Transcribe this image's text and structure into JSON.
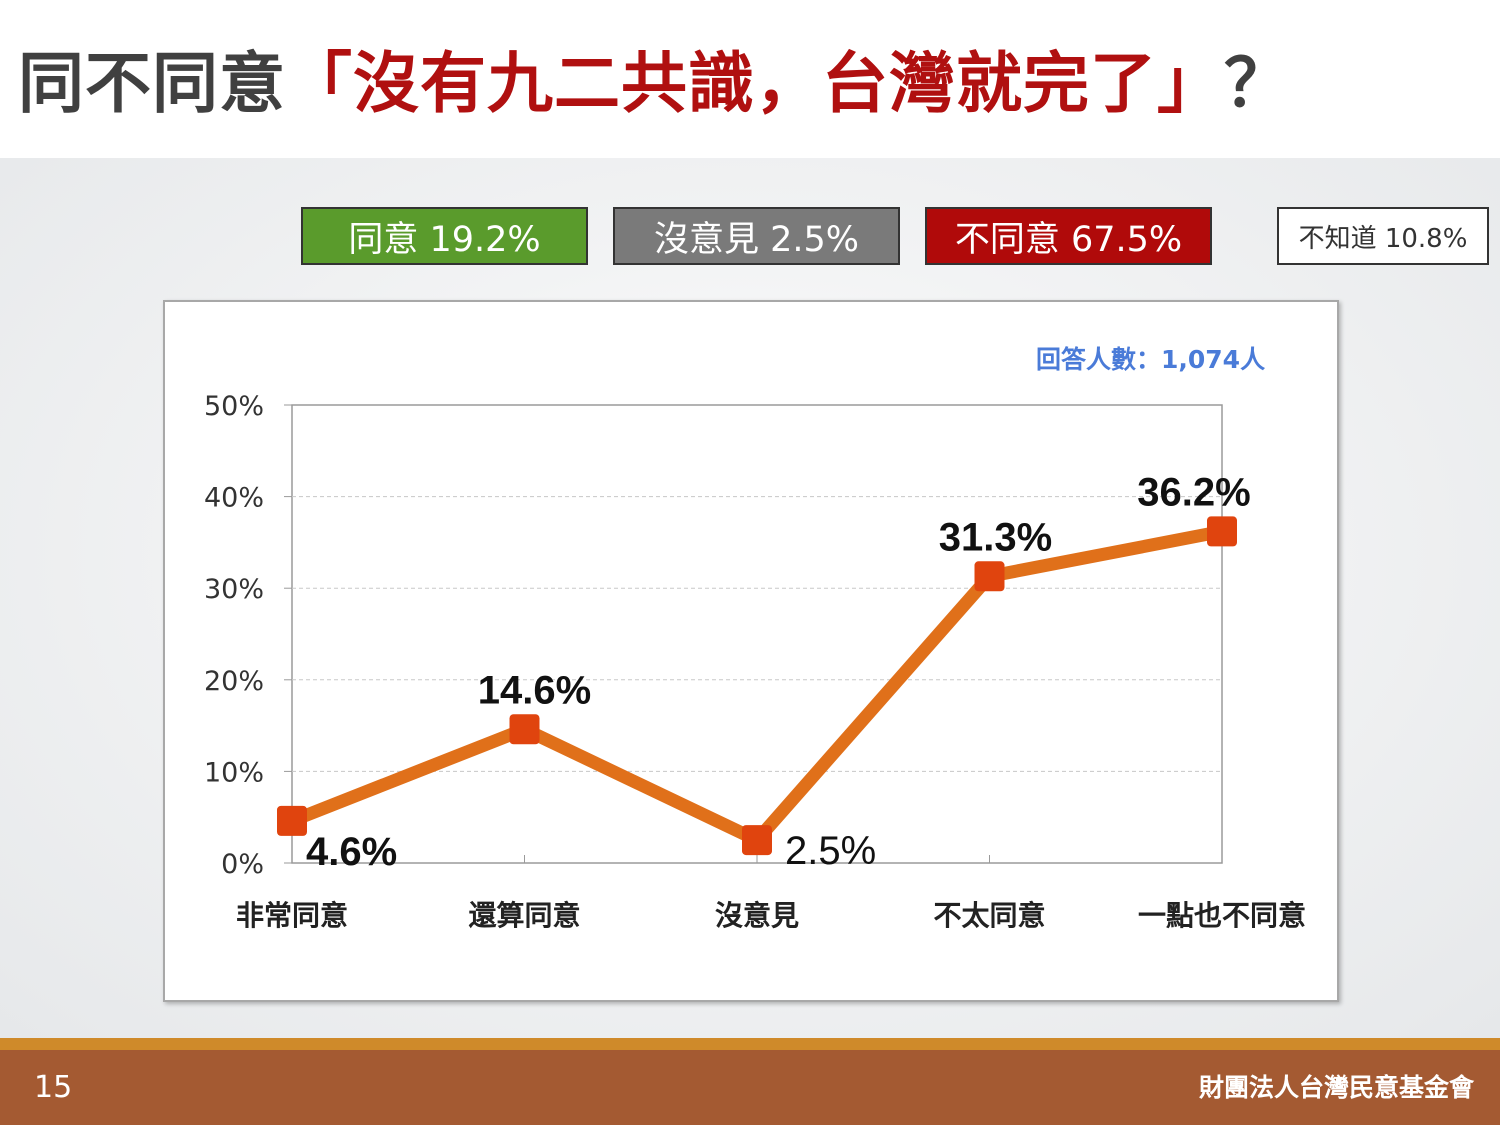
{
  "title": {
    "prefix": "同不同意",
    "highlight": "「沒有九二共識，台灣就完了」",
    "suffix": "？"
  },
  "summary": {
    "agree": "同意 19.2%",
    "no_opinion": "沒意見 2.5%",
    "disagree": "不同意 67.5%",
    "dont_know": "不知道 10.8%"
  },
  "respondents": "回答人數：1,074人",
  "colors": {
    "agree": "#5a9b2c",
    "no_opinion": "#7a7a7a",
    "disagree": "#b00a0a",
    "line": "#e0701a",
    "marker": "#e0440e"
  },
  "chart_data": {
    "type": "line",
    "categories": [
      "非常同意",
      "還算同意",
      "沒意見",
      "不太同意",
      "一點也不同意"
    ],
    "values": [
      4.6,
      14.6,
      2.5,
      31.3,
      36.2
    ],
    "value_labels": [
      "4.6%",
      "14.6%",
      "2.5%",
      "31.3%",
      "36.2%"
    ],
    "ylim": [
      0,
      50
    ],
    "yticks": [
      "0%",
      "10%",
      "20%",
      "30%",
      "40%",
      "50%"
    ],
    "grid": true
  },
  "footer": {
    "page": "15",
    "org": "財團法人台灣民意基金會"
  }
}
